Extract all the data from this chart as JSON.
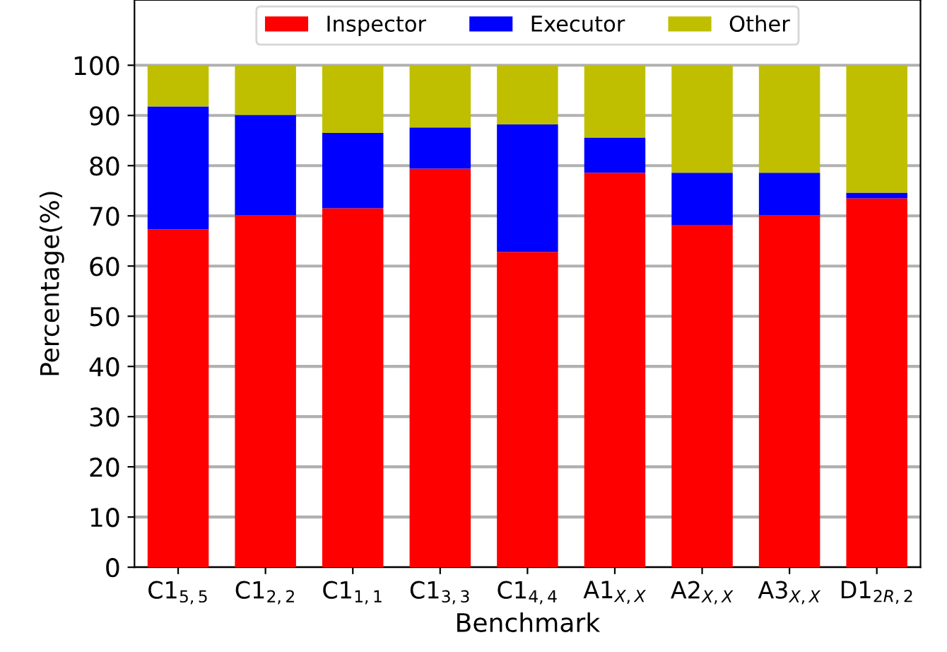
{
  "chart_data": {
    "type": "bar",
    "stacked": true,
    "xlabel": "Benchmark",
    "ylabel": "Percentage(%)",
    "categories": [
      "C1$_{5,5}$",
      "C1$_{2,2}$",
      "C1$_{1,1}$",
      "C1$_{3,3}$",
      "C1$_{4,4}$",
      "A1$_{X,X}$",
      "A2$_{X,X}$",
      "A3$_{X,X}$",
      "D1$_{2R,2}$"
    ],
    "series": [
      {
        "name": "Inspector",
        "color": "#ff0000",
        "values": [
          67.3,
          70.1,
          71.5,
          79.4,
          62.8,
          78.6,
          68.2,
          70.1,
          73.5
        ]
      },
      {
        "name": "Executor",
        "color": "#0000ff",
        "values": [
          24.5,
          20.0,
          15.0,
          8.2,
          25.4,
          7.0,
          10.4,
          8.5,
          1.1
        ]
      },
      {
        "name": "Other",
        "color": "#bfbf00",
        "values": [
          8.2,
          9.9,
          13.5,
          12.4,
          11.8,
          14.4,
          21.4,
          21.4,
          25.4
        ]
      }
    ],
    "ylim": [
      0,
      113
    ],
    "yticks": [
      0,
      10,
      20,
      30,
      40,
      50,
      60,
      70,
      80,
      90,
      100
    ],
    "grid": "y",
    "legend": "top"
  }
}
